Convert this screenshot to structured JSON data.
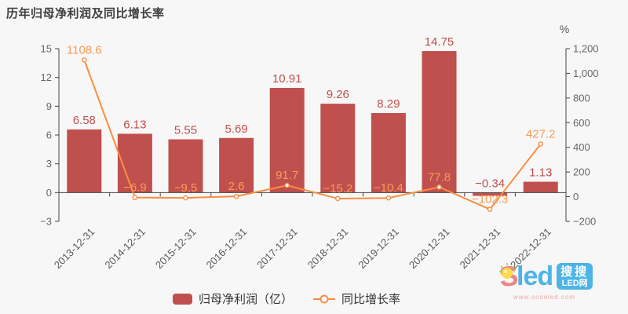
{
  "title": "历年归母净利润及同比增长率",
  "legend": {
    "bar_label": "归母净利润（亿）",
    "line_label": "同比增长率"
  },
  "watermark": {
    "logo_s": "S",
    "logo_rest": "led",
    "badge_line1": "搜搜",
    "badge_line2": "LED网",
    "url": "www.sosoled.com"
  },
  "colors": {
    "bar": "#c0504d",
    "line": "#f98d41",
    "line_label": "#fa9a56",
    "axis": "#444444",
    "tick_text": "#666666",
    "background": "#f7f7f7"
  },
  "chart_data": {
    "type": "bar+line",
    "title": "历年归母净利润及同比增长率",
    "categories": [
      "2013-12-31",
      "2014-12-31",
      "2015-12-31",
      "2016-12-31",
      "2017-12-31",
      "2018-12-31",
      "2019-12-31",
      "2020-12-31",
      "2021-12-31",
      "2022-12-31"
    ],
    "series": [
      {
        "name": "归母净利润（亿）",
        "type": "bar",
        "axis": "left",
        "values": [
          6.58,
          6.13,
          5.55,
          5.69,
          10.91,
          9.26,
          8.29,
          14.75,
          -0.34,
          1.13
        ]
      },
      {
        "name": "同比增长率",
        "type": "line",
        "axis": "right",
        "values": [
          1108.6,
          -6.9,
          -9.5,
          2.6,
          91.7,
          -15.2,
          -10.4,
          77.8,
          -102.3,
          427.2
        ]
      }
    ],
    "left_axis": {
      "min": -3,
      "max": 15,
      "ticks": [
        15,
        12,
        9,
        6,
        3,
        0,
        -3
      ],
      "tick_labels": [
        "15",
        "12",
        "9",
        "6",
        "3",
        "0",
        "−3"
      ]
    },
    "right_axis": {
      "min": -200,
      "max": 1200,
      "unit": "%",
      "ticks": [
        1200,
        1000,
        800,
        600,
        400,
        200,
        0,
        -200
      ],
      "tick_labels": [
        "1,200",
        "1,000",
        "800",
        "600",
        "400",
        "200",
        "0",
        "−200"
      ]
    },
    "grid": false,
    "legend_position": "bottom"
  }
}
